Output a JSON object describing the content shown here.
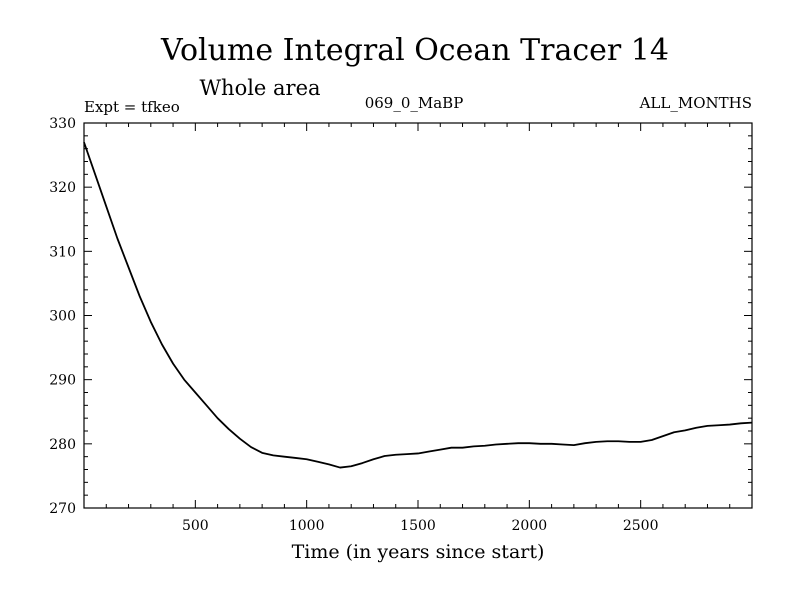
{
  "chart_data": {
    "type": "line",
    "title": "Volume Integral Ocean Tracer 14",
    "subtitle": "Whole area",
    "left_label": "Expt = tfkeo",
    "center_label": "069_0_MaBP",
    "right_label": "ALL_MONTHS",
    "xlabel": "Time (in years since start)",
    "ylabel": "",
    "xlim": [
      0,
      3000
    ],
    "ylim": [
      270,
      330
    ],
    "x_ticks": [
      500,
      1000,
      1500,
      2000,
      2500
    ],
    "y_ticks": [
      270,
      280,
      290,
      300,
      310,
      320,
      330
    ],
    "grid": false,
    "series": [
      {
        "color": "#000000",
        "x": [
          0,
          50,
          100,
          150,
          200,
          250,
          300,
          350,
          400,
          450,
          500,
          550,
          600,
          650,
          700,
          750,
          800,
          850,
          900,
          950,
          1000,
          1050,
          1100,
          1150,
          1200,
          1250,
          1300,
          1350,
          1400,
          1450,
          1500,
          1550,
          1600,
          1650,
          1700,
          1750,
          1800,
          1850,
          1900,
          1950,
          2000,
          2050,
          2100,
          2150,
          2200,
          2250,
          2300,
          2350,
          2400,
          2450,
          2500,
          2550,
          2600,
          2650,
          2700,
          2750,
          2800,
          2850,
          2900,
          2950,
          3000
        ],
        "y": [
          327.0,
          322.0,
          317.0,
          312.0,
          307.5,
          303.0,
          299.0,
          295.5,
          292.5,
          290.0,
          288.0,
          286.0,
          284.0,
          282.3,
          280.8,
          279.5,
          278.6,
          278.2,
          278.0,
          277.8,
          277.6,
          277.2,
          276.8,
          276.3,
          276.5,
          277.0,
          277.6,
          278.1,
          278.3,
          278.4,
          278.5,
          278.8,
          279.1,
          279.4,
          279.4,
          279.6,
          279.7,
          279.9,
          280.0,
          280.1,
          280.1,
          280.0,
          280.0,
          279.9,
          279.8,
          280.1,
          280.3,
          280.4,
          280.4,
          280.3,
          280.3,
          280.6,
          281.2,
          281.8,
          282.1,
          282.5,
          282.8,
          282.9,
          283.0,
          283.2,
          283.3
        ]
      }
    ]
  }
}
